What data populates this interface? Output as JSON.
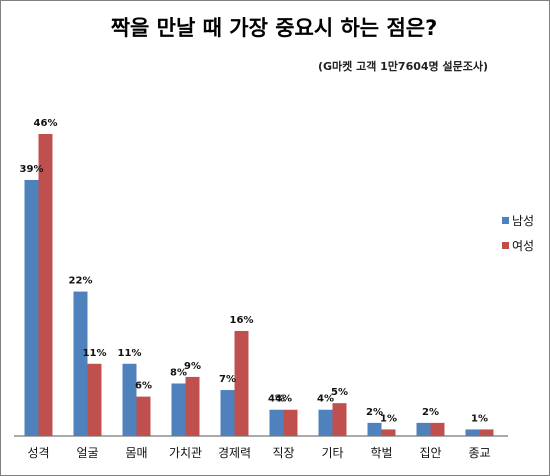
{
  "title": "짝을 만날 때 가장 중요시 하는 점은?",
  "subtitle": "(G마켓 고객 1만7604명 설문조사)",
  "chart_data": {
    "type": "bar",
    "title": "짝을 만날 때 가장 중요시 하는 점은?",
    "subtitle": "(G마켓 고객 1만7604명 설문조사)",
    "categories": [
      "성격",
      "얼굴",
      "몸매",
      "가치관",
      "경제력",
      "직장",
      "기타",
      "학벌",
      "집안",
      "종교"
    ],
    "series": [
      {
        "name": "남성",
        "color": "#4f81bd",
        "values": [
          39,
          22,
          11,
          8,
          7,
          4,
          4,
          2,
          2,
          1
        ],
        "labels": [
          "39%",
          "22%",
          "11%",
          "8%",
          "7%",
          "4%",
          "4%",
          "2%",
          "",
          ""
        ]
      },
      {
        "name": "여성",
        "color": "#c0504d",
        "values": [
          46,
          11,
          6,
          9,
          16,
          4,
          5,
          1,
          2,
          1
        ],
        "labels": [
          "46%",
          "11%",
          "6%",
          "9%",
          "16%",
          "",
          "5%",
          "1%",
          "",
          ""
        ]
      }
    ],
    "shared_labels": [
      "",
      "",
      "",
      "",
      "",
      "4%",
      "",
      "",
      "2%",
      "1%"
    ],
    "ylim": [
      0,
      50
    ],
    "grid": false,
    "legend": "right"
  }
}
